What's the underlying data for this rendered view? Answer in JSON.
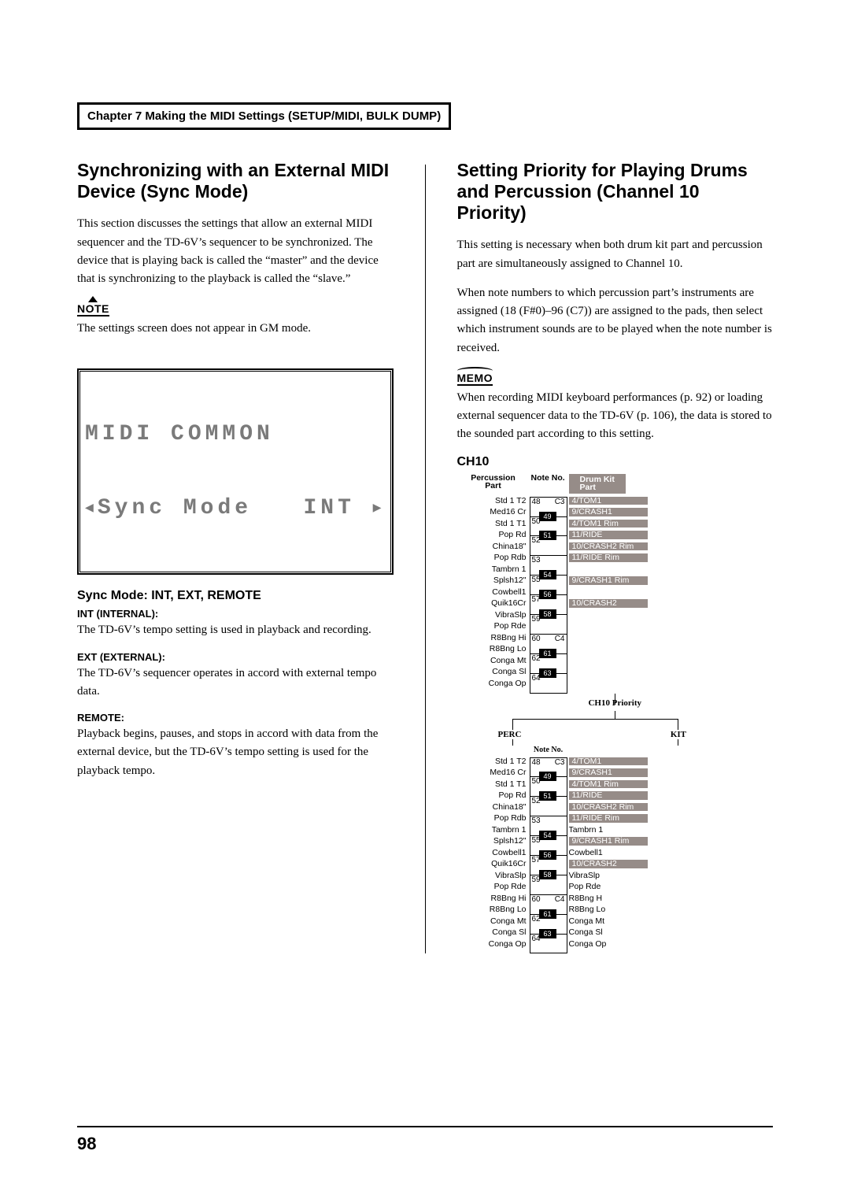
{
  "chapter_header": "Chapter 7 Making the MIDI Settings (SETUP/MIDI, BULK DUMP)",
  "page_number": "98",
  "left": {
    "h2": "Synchronizing with an External MIDI Device (Sync Mode)",
    "p1": "This section discusses the settings that allow an external MIDI sequencer and the TD-6V’s sequencer to be synchronized. The device that is playing back is called the “master” and the device that is synchronizing to the playback is called the “slave.”",
    "note_label": "NOTE",
    "note_text": "The settings screen does not appear in GM mode.",
    "lcd_line1": "MIDI COMMON",
    "lcd_line2_left": "Sync Mode",
    "lcd_line2_right": "INT",
    "sub": "Sync Mode: INT, EXT, REMOTE",
    "opts": [
      {
        "h": "INT (INTERNAL):",
        "t": "The TD-6V’s tempo setting is used in playback and recording."
      },
      {
        "h": "EXT (EXTERNAL):",
        "t": "The TD-6V’s sequencer operates in accord with external tempo data."
      },
      {
        "h": "REMOTE:",
        "t": "Playback begins, pauses, and stops in accord with data from the external device, but the TD-6V’s tempo setting is used for the playback tempo."
      }
    ]
  },
  "right": {
    "h2": "Setting Priority for Playing Drums and Percussion (Channel 10 Priority)",
    "p1": "This setting is necessary when both drum kit part and percussion part are simultaneously assigned to Channel 10.",
    "p2": "When note numbers to which percussion part’s instruments are assigned (18 (F#0)–96 (C7)) are assigned to the pads, then select which instrument sounds are to be played when the note number is received.",
    "memo_label": "MEMO",
    "memo_text": "When recording MIDI keyboard performances (p. 92) or loading external sequencer data to the TD-6V (p. 106), the data is stored to the sounded part according to this setting.",
    "ch10_label": "CH10",
    "headers": {
      "perc": "Percussion\nPart",
      "note": "Note No.",
      "kit": "Drum Kit\nPart"
    },
    "perc_names": [
      "Std 1 T2",
      "Med16 Cr",
      "Std 1 T1",
      "Pop Rd",
      "China18\"",
      "Pop Rdb",
      "Tambrn 1",
      "Splsh12\"",
      "Cowbell1",
      "Quik16Cr",
      "VibraSlp",
      "Pop Rde",
      "R8Bng Hi",
      "R8Bng Lo",
      "Conga Mt",
      "Conga Sl",
      "Conga Op"
    ],
    "keyboard": {
      "white": [
        {
          "num": "48",
          "oct": "C3"
        },
        {
          "num": "50",
          "oct": ""
        },
        {
          "num": "52",
          "oct": ""
        },
        {
          "num": "53",
          "oct": ""
        },
        {
          "num": "55",
          "oct": ""
        },
        {
          "num": "57",
          "oct": ""
        },
        {
          "num": "59",
          "oct": ""
        },
        {
          "num": "60",
          "oct": "C4"
        },
        {
          "num": "62",
          "oct": ""
        },
        {
          "num": "64",
          "oct": ""
        }
      ],
      "black": [
        {
          "num": "49",
          "after": 0
        },
        {
          "num": "51",
          "after": 1
        },
        {
          "num": "54",
          "after": 3
        },
        {
          "num": "56",
          "after": 4
        },
        {
          "num": "58",
          "after": 5
        },
        {
          "num": "61",
          "after": 7
        },
        {
          "num": "63",
          "after": 8
        }
      ]
    },
    "kit_upper": [
      "4/TOM1",
      "9/CRASH1",
      "4/TOM1 Rim",
      "11/RIDE",
      "10/CRASH2 Rim",
      "11/RIDE Rim",
      "",
      "9/CRASH1 Rim",
      "",
      "10/CRASH2",
      "",
      "",
      "",
      "",
      "",
      "",
      ""
    ],
    "kit_upper_grey": [
      true,
      true,
      true,
      true,
      true,
      true,
      false,
      true,
      false,
      true,
      false,
      false,
      false,
      false,
      false,
      false,
      false
    ],
    "kit_lower": [
      "4/TOM1",
      "9/CRASH1",
      "4/TOM1 Rim",
      "11/RIDE",
      "10/CRASH2 Rim",
      "11/RIDE Rim",
      "Tambrn 1",
      "9/CRASH1 Rim",
      "Cowbell1",
      "10/CRASH2",
      "VibraSlp",
      "Pop Rde",
      "R8Bng H",
      "R8Bng Lo",
      "Conga Mt",
      "Conga Sl",
      "Conga Op"
    ],
    "kit_lower_grey": [
      true,
      true,
      true,
      true,
      true,
      true,
      false,
      true,
      false,
      true,
      false,
      false,
      false,
      false,
      false,
      false,
      false
    ],
    "priority_label": "CH10 Priority",
    "perc_lbl": "PERC",
    "kit_lbl": "KIT",
    "noteno2": "Note No."
  },
  "colors": {
    "grey_highlight": "#968c88",
    "lcd_text": "#7a7a7a"
  }
}
